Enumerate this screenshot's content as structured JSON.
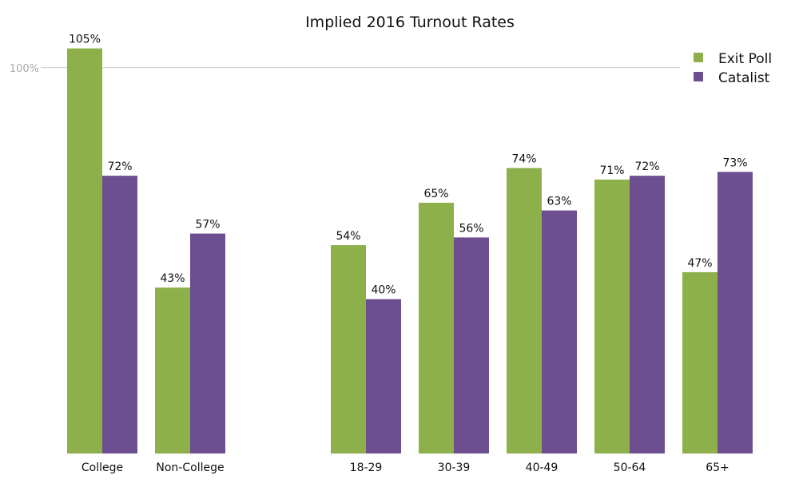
{
  "chart_data": {
    "type": "bar",
    "title": "Implied 2016 Turnout Rates",
    "xlabel": "",
    "ylabel": "",
    "ylim": [
      0,
      107.2
    ],
    "categories": [
      "College",
      "Non-College",
      "",
      "18-29",
      "30-39",
      "40-49",
      "50-64",
      "65+"
    ],
    "series": [
      {
        "name": "Exit Poll",
        "color": "#8db04a",
        "values": [
          105,
          43,
          null,
          54,
          65,
          74,
          71,
          47
        ],
        "labels": [
          "105%",
          "43%",
          "",
          "54%",
          "65%",
          "74%",
          "71%",
          "47%"
        ]
      },
      {
        "name": "Catalist",
        "color": "#6d4e90",
        "values": [
          72,
          57,
          null,
          40,
          56,
          63,
          72,
          73
        ],
        "labels": [
          "72%",
          "57%",
          "",
          "40%",
          "56%",
          "63%",
          "72%",
          "73%"
        ]
      }
    ],
    "reference_line": {
      "value": 100,
      "label": "100%",
      "color": "#cccccc"
    },
    "grid": false,
    "legend_position": "top-right"
  }
}
